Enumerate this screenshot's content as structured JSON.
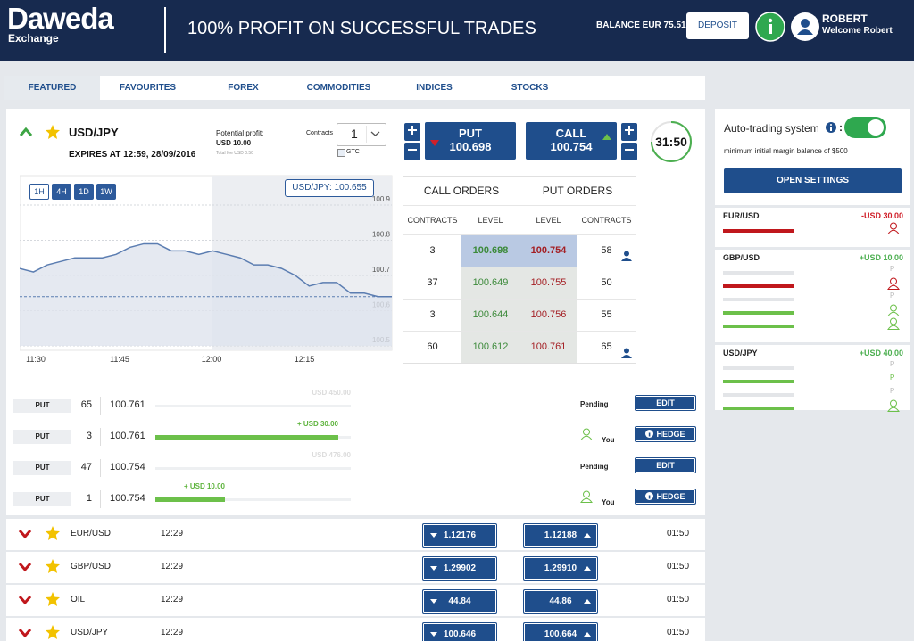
{
  "header": {
    "logo": "Daweda",
    "logo_sub": "Exchange",
    "headline": "100% PROFIT ON SUCCESSFUL TRADES",
    "balance": "BALANCE EUR 75.51",
    "deposit": "DEPOSIT",
    "user": "ROBERT",
    "welcome": "Welcome Robert"
  },
  "tabs": [
    "FEATURED",
    "FAVOURITES",
    "FOREX",
    "COMMODITIES",
    "INDICES",
    "STOCKS"
  ],
  "featured": {
    "symbol": "USD/JPY",
    "expires": "EXPIRES AT 12:59, 28/09/2016",
    "profit_label": "Potential profit:",
    "profit": "USD 10.00",
    "fee": "Total fee USD 0.50",
    "contracts_label": "Contracts",
    "contracts": 1,
    "gtc": "GTC",
    "put": "PUT",
    "put_price": "100.698",
    "call": "CALL",
    "call_price": "100.754",
    "timer": "31:50"
  },
  "chart": {
    "type": "line",
    "ranges": [
      "1H",
      "4H",
      "1D",
      "1W"
    ],
    "tooltip": "USD/JPY: 100.655",
    "ylim": [
      100.5,
      100.9
    ],
    "yticks": [
      100.9,
      100.8,
      100.7,
      100.6,
      100.5
    ],
    "xticks": [
      "11:30",
      "11:45",
      "12:00",
      "12:15"
    ],
    "values": [
      100.72,
      100.71,
      100.73,
      100.74,
      100.75,
      100.75,
      100.75,
      100.76,
      100.78,
      100.79,
      100.79,
      100.77,
      100.77,
      100.76,
      100.77,
      100.76,
      100.75,
      100.73,
      100.73,
      100.72,
      100.7,
      100.67,
      100.68,
      100.68,
      100.65,
      100.65,
      100.64,
      100.64
    ],
    "color": "#5b7db1"
  },
  "order_book": {
    "call_title": "CALL ORDERS",
    "put_title": "PUT ORDERS",
    "columns": [
      "CONTRACTS",
      "LEVEL",
      "LEVEL",
      "CONTRACTS"
    ],
    "rows": [
      [
        3,
        "100.698",
        "100.754",
        58
      ],
      [
        37,
        "100.649",
        "100.755",
        50
      ],
      [
        3,
        "100.644",
        "100.756",
        55
      ],
      [
        60,
        "100.612",
        "100.761",
        65
      ]
    ]
  },
  "positions": [
    {
      "side": "PUT",
      "contracts": 65,
      "level": "100.761",
      "amount": "USD 450.00",
      "status": "Pending",
      "action": "EDIT"
    },
    {
      "side": "PUT",
      "contracts": 3,
      "level": "100.761",
      "amount": "+ USD 30.00",
      "status": "You",
      "action": "HEDGE"
    },
    {
      "side": "PUT",
      "contracts": 47,
      "level": "100.754",
      "amount": "USD 476.00",
      "status": "Pending",
      "action": "EDIT"
    },
    {
      "side": "PUT",
      "contracts": 1,
      "level": "100.754",
      "amount": "+ USD 10.00",
      "status": "You",
      "action": "HEDGE"
    }
  ],
  "markets": [
    {
      "symbol": "EUR/USD",
      "time": "12:29",
      "put": "1.12176",
      "call": "1.12188",
      "remaining": "01:50"
    },
    {
      "symbol": "GBP/USD",
      "time": "12:29",
      "put": "1.29902",
      "call": "1.29910",
      "remaining": "01:50"
    },
    {
      "symbol": "OIL",
      "time": "12:29",
      "put": "44.84",
      "call": "44.86",
      "remaining": "01:50"
    },
    {
      "symbol": "USD/JPY",
      "time": "12:29",
      "put": "100.646",
      "call": "100.664",
      "remaining": "01:50"
    }
  ],
  "auto": {
    "title": "Auto-trading system",
    "colon": ":",
    "note": "minimum initial margin balance of $500",
    "button": "OPEN SETTINGS",
    "groups": [
      {
        "symbol": "EUR/USD",
        "pnl": "-USD 30.00",
        "rows": [
          {
            "color": "red"
          }
        ]
      },
      {
        "symbol": "GBP/USD",
        "pnl": "+USD 10.00",
        "rows": [
          {
            "color": "gray",
            "tag": "P"
          },
          {
            "color": "red"
          },
          {
            "color": "gray",
            "tag": "P"
          },
          {
            "color": "green"
          },
          {
            "color": "green"
          }
        ]
      },
      {
        "symbol": "USD/JPY",
        "pnl": "+USD 40.00",
        "rows": [
          {
            "color": "gray",
            "tag": "P"
          },
          {
            "color": "green",
            "tag": "P"
          },
          {
            "color": "gray",
            "tag": "P"
          },
          {
            "color": "green"
          }
        ]
      }
    ]
  }
}
